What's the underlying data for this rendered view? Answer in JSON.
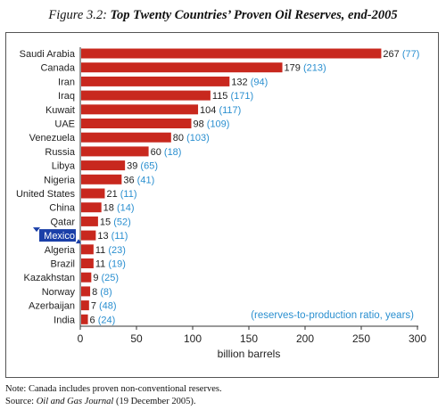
{
  "figure": {
    "label": "Figure 3.2:",
    "title": "Top Twenty Countries’ Proven Oil Reserves, end-2005"
  },
  "chart_data": {
    "type": "bar",
    "orientation": "horizontal",
    "categories": [
      "Saudi Arabia",
      "Canada",
      "Iran",
      "Iraq",
      "Kuwait",
      "UAE",
      "Venezuela",
      "Russia",
      "Libya",
      "Nigeria",
      "United States",
      "China",
      "Qatar",
      "Mexico",
      "Algeria",
      "Brazil",
      "Kazakhstan",
      "Norway",
      "Azerbaijan",
      "India"
    ],
    "series": [
      {
        "values": [
          267,
          179,
          132,
          115,
          104,
          98,
          80,
          60,
          39,
          36,
          21,
          18,
          15,
          13,
          11,
          11,
          9,
          8,
          7,
          6
        ]
      }
    ],
    "rp_ratio": [
      77,
      213,
      94,
      171,
      117,
      109,
      103,
      18,
      65,
      41,
      11,
      14,
      52,
      11,
      23,
      19,
      25,
      8,
      48,
      24
    ],
    "xlabel": "billion barrels",
    "xlim": [
      0,
      300
    ],
    "xticks": [
      0,
      50,
      100,
      150,
      200,
      250,
      300
    ],
    "annotation": "(reserves-to-production ratio, years)",
    "highlighted_category": "Mexico",
    "grid": false,
    "colors": {
      "bar": "#c8281e",
      "ratio_text": "#2a8fd0",
      "highlight": "#1a3fa8"
    }
  },
  "notes": {
    "note": "Note: Canada includes proven non-conventional reserves.",
    "source_prefix": "Source: ",
    "source_name": "Oil and Gas Journal",
    "source_suffix": " (19 December 2005)."
  }
}
